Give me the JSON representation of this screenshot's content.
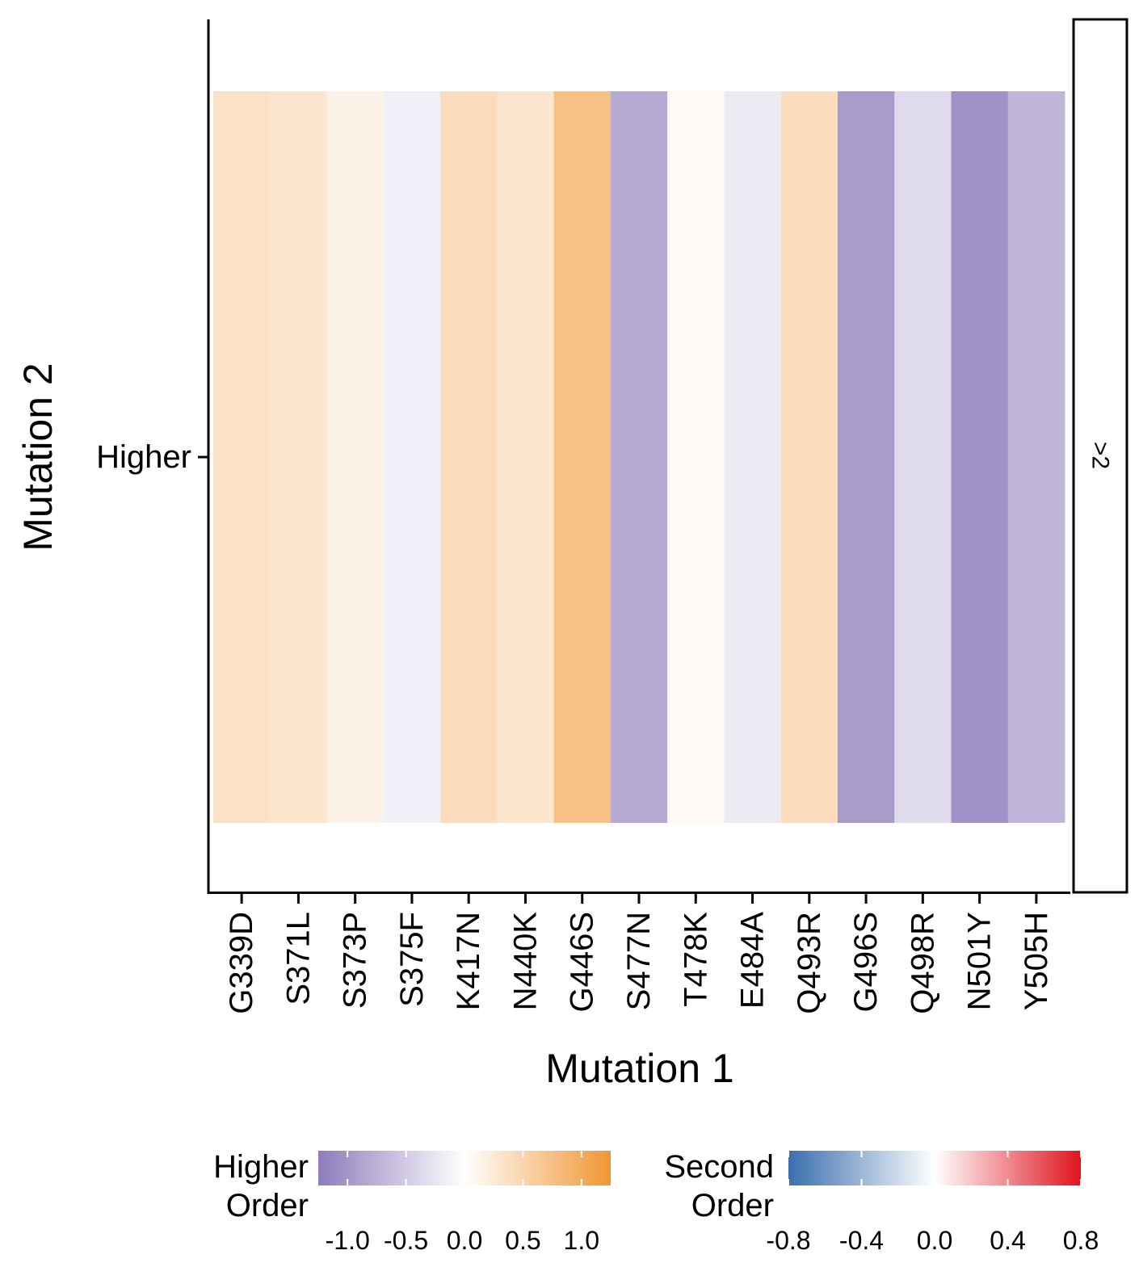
{
  "chart_data": {
    "type": "heatmap",
    "xlabel": "Mutation 1",
    "ylabel": "Mutation 2",
    "x_categories": [
      "G339D",
      "S371L",
      "S373P",
      "S375F",
      "K417N",
      "N440K",
      "G446S",
      "S477N",
      "T478K",
      "E484A",
      "Q493R",
      "G496S",
      "Q498R",
      "N501Y",
      "Y505H"
    ],
    "y_categories": [
      "Higher"
    ],
    "facet_label": ">2",
    "values": [
      0.35,
      0.3,
      0.15,
      -0.15,
      0.4,
      0.3,
      0.75,
      -0.8,
      0.05,
      -0.2,
      0.4,
      -0.95,
      -0.35,
      -1.05,
      -0.7
    ],
    "grid": false,
    "legend_position": "bottom",
    "legends": [
      {
        "title_lines": [
          "Higher",
          "Order"
        ],
        "range": [
          -1.25,
          1.25
        ],
        "ticks": [
          -1.0,
          -0.5,
          0.0,
          0.5,
          1.0
        ],
        "tick_labels": [
          "-1.0",
          "-0.5",
          "0.0",
          "0.5",
          "1.0"
        ],
        "low_color": "#8e7cbb",
        "mid_color": "#ffffff",
        "high_color": "#f19633"
      },
      {
        "title_lines": [
          "Second",
          "Order"
        ],
        "range": [
          -0.8,
          0.8
        ],
        "ticks": [
          -0.8,
          -0.4,
          0.0,
          0.4,
          0.8
        ],
        "tick_labels": [
          "-0.8",
          "-0.4",
          "0.0",
          "0.4",
          "0.8"
        ],
        "low_color": "#3a6fae",
        "mid_color": "#ffffff",
        "high_color": "#e0141e"
      }
    ]
  }
}
